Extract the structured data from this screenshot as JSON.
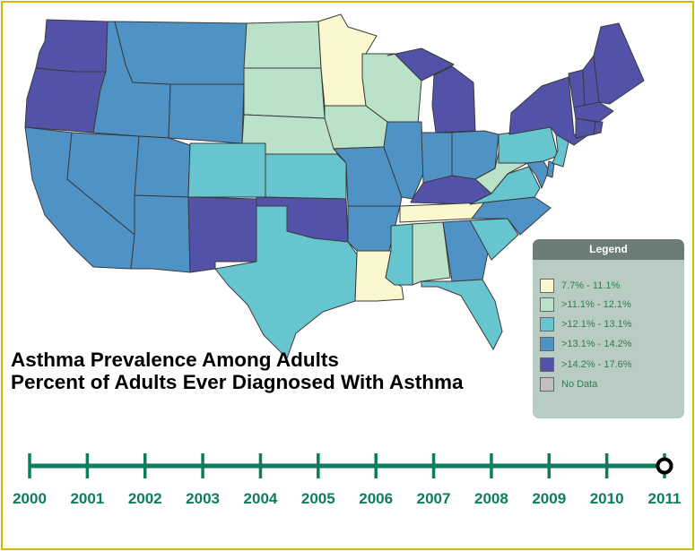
{
  "title": {
    "line1": "Asthma Prevalence Among Adults",
    "line2": "Percent of Adults Ever Diagnosed With Asthma"
  },
  "legend": {
    "heading": "Legend",
    "items": [
      {
        "label": "7.7% - 11.1%",
        "color": "#fbf8d0",
        "class": "c1"
      },
      {
        "label": ">11.1% - 12.1%",
        "color": "#b9e2c8",
        "class": "c2"
      },
      {
        "label": ">12.1% - 13.1%",
        "color": "#67c5d0",
        "class": "c3"
      },
      {
        "label": ">13.1% - 14.2%",
        "color": "#4f93c6",
        "class": "c4"
      },
      {
        "label": ">14.2% - 17.6%",
        "color": "#5253a8",
        "class": "c5"
      },
      {
        "label": "No Data",
        "color": "#c0c0c0",
        "class": "nd"
      }
    ]
  },
  "timeline": {
    "years": [
      "2000",
      "2001",
      "2002",
      "2003",
      "2004",
      "2005",
      "2006",
      "2007",
      "2008",
      "2009",
      "2010",
      "2011"
    ],
    "selected": "2011",
    "color": "#0e7c5e"
  },
  "states": {
    "WA": "c5",
    "OR": "c5",
    "CA": "c4",
    "NV": "c4",
    "ID": "c4",
    "MT": "c4",
    "WY": "c4",
    "UT": "c4",
    "AZ": "c4",
    "CO": "c3",
    "NM": "c5",
    "ND": "c2",
    "SD": "c2",
    "NE": "c2",
    "KS": "c3",
    "OK": "c5",
    "TX": "c3",
    "MN": "c1",
    "IA": "c2",
    "MO": "c4",
    "AR": "c4",
    "LA": "c1",
    "WI": "c2",
    "IL": "c4",
    "MI": "c5",
    "IN": "c4",
    "OH": "c4",
    "KY": "c5",
    "TN": "c1",
    "MS": "c3",
    "AL": "c2",
    "GA": "c4",
    "FL": "c3",
    "SC": "c3",
    "NC": "c4",
    "VA": "c3",
    "WV": "c2",
    "PA": "c3",
    "NY": "c5",
    "VT": "c5",
    "NH": "c5",
    "ME": "c5",
    "MA": "c5",
    "RI": "c5",
    "CT": "c5",
    "NJ": "c3",
    "DE": "c4",
    "MD": "c4"
  }
}
